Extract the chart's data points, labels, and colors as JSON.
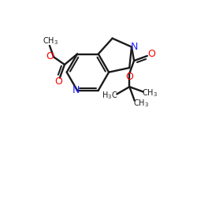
{
  "bg": "#ffffff",
  "bc": "#1a1a1a",
  "nc": "#2222ff",
  "oc": "#ff0000",
  "lw": 1.7,
  "dbo": 0.13,
  "fs": 7.5,
  "figsize": [
    2.5,
    2.5
  ],
  "dpi": 100,
  "xlim": [
    0,
    10
  ],
  "ylim": [
    0,
    10
  ],
  "shrink": 0.12
}
